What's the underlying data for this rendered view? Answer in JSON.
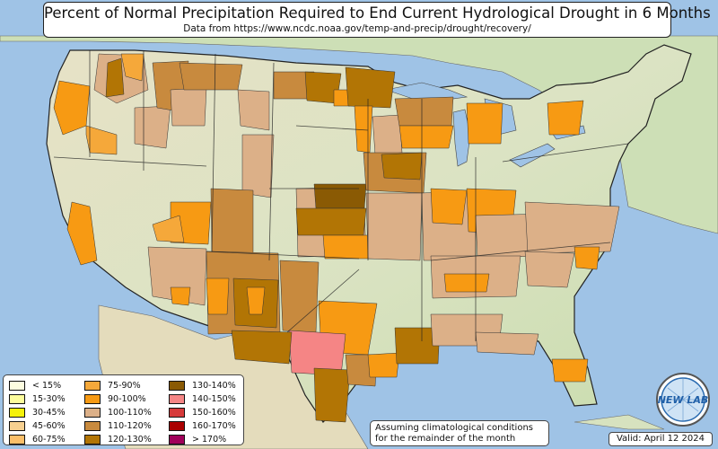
{
  "header": {
    "title": "Percent of Normal Precipitation Required to End Current Hydrological Drought in 6 Months",
    "subtitle": "Data from https://www.ncdc.noaa.gov/temp-and-precip/drought/recovery/"
  },
  "legend": {
    "items": [
      {
        "label": "< 15%",
        "color": "#fdfde0"
      },
      {
        "label": "15-30%",
        "color": "#fdfd9c"
      },
      {
        "label": "30-45%",
        "color": "#f5f20b"
      },
      {
        "label": "45-60%",
        "color": "#f7d090"
      },
      {
        "label": "60-75%",
        "color": "#fbbf69"
      },
      {
        "label": "75-90%",
        "color": "#f5a83a"
      },
      {
        "label": "90-100%",
        "color": "#f79a13"
      },
      {
        "label": "100-110%",
        "color": "#dcb088"
      },
      {
        "label": "110-120%",
        "color": "#c88a3e"
      },
      {
        "label": "120-130%",
        "color": "#b27505"
      },
      {
        "label": "130-140%",
        "color": "#8a5a04"
      },
      {
        "label": "140-150%",
        "color": "#f58585"
      },
      {
        "label": "150-160%",
        "color": "#d63a3a"
      },
      {
        "label": "160-170%",
        "color": "#aa0000"
      },
      {
        "label": "> 170%",
        "color": "#a0005a"
      }
    ]
  },
  "footer": {
    "note": "Assuming climatological conditions for the remainder of the month",
    "valid": "Valid: April 12 2024"
  },
  "logo": {
    "text": "NEW LAB"
  },
  "colors": {
    "ocean": "#9fc3e6",
    "land": "#dfe3c8",
    "border": "#222222"
  }
}
